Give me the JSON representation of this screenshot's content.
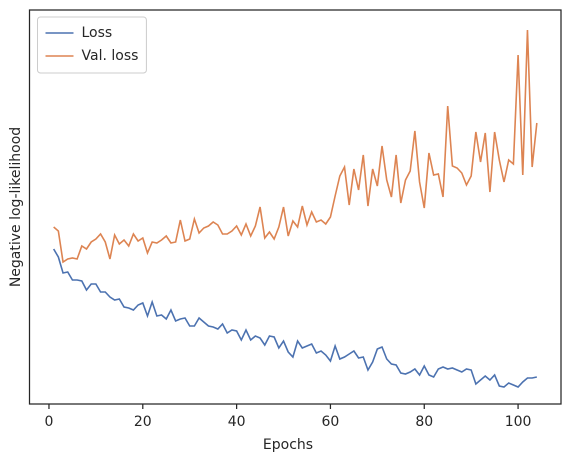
{
  "chart_data": {
    "type": "line",
    "x_label": "Epochs",
    "y_label": "Negative log-likelihood",
    "x": [
      1,
      2,
      3,
      4,
      5,
      6,
      7,
      8,
      9,
      10,
      11,
      12,
      13,
      14,
      15,
      16,
      17,
      18,
      19,
      20,
      21,
      22,
      23,
      24,
      25,
      26,
      27,
      28,
      29,
      30,
      31,
      32,
      33,
      34,
      35,
      36,
      37,
      38,
      39,
      40,
      41,
      42,
      43,
      44,
      45,
      46,
      47,
      48,
      49,
      50,
      51,
      52,
      53,
      54,
      55,
      56,
      57,
      58,
      59,
      60,
      61,
      62,
      63,
      64,
      65,
      66,
      67,
      68,
      69,
      70,
      71,
      72,
      73,
      74,
      75,
      76,
      77,
      78,
      79,
      80,
      81,
      82,
      83,
      84,
      85,
      86,
      87,
      88,
      89,
      90,
      91,
      92,
      93,
      94,
      95,
      96,
      97,
      98,
      99,
      100,
      101,
      102,
      103,
      104
    ],
    "series": [
      {
        "name": "Loss",
        "color": "#4c72b0",
        "values": [
          155,
          147,
          131,
          132,
          124,
          124,
          123,
          114,
          120,
          120,
          112,
          112,
          107,
          104,
          105,
          97,
          96,
          94,
          99,
          101,
          88,
          102,
          88,
          89,
          85,
          94,
          83,
          85,
          86,
          78,
          78,
          86,
          82,
          78,
          77,
          75,
          80,
          71,
          74,
          73,
          64,
          74,
          64,
          68,
          66,
          59,
          68,
          67,
          56,
          63,
          52,
          47,
          63,
          56,
          58,
          60,
          51,
          53,
          49,
          43,
          58,
          45,
          47,
          50,
          53,
          46,
          47,
          34,
          42,
          55,
          57,
          45,
          40,
          39,
          31,
          30,
          32,
          35,
          29,
          38,
          29,
          27,
          35,
          37,
          35,
          36,
          34,
          32,
          35,
          34,
          20,
          24,
          28,
          24,
          29,
          18,
          17,
          21,
          19,
          17,
          22,
          26,
          26,
          27
        ]
      },
      {
        "name": "Val. loss",
        "color": "#dd8452",
        "values": [
          177,
          173,
          142,
          145,
          146,
          145,
          158,
          155,
          162,
          165,
          170,
          162,
          145,
          169,
          160,
          164,
          158,
          170,
          163,
          166,
          151,
          162,
          161,
          164,
          168,
          161,
          162,
          184,
          163,
          165,
          185,
          171,
          176,
          178,
          182,
          179,
          170,
          170,
          173,
          178,
          169,
          180,
          168,
          178,
          197,
          166,
          172,
          165,
          177,
          197,
          168,
          183,
          177,
          198,
          179,
          192,
          182,
          184,
          180,
          187,
          208,
          228,
          237,
          199,
          235,
          214,
          249,
          198,
          235,
          218,
          258,
          224,
          207,
          249,
          201,
          224,
          233,
          273,
          222,
          196,
          251,
          229,
          230,
          207,
          298,
          238,
          236,
          231,
          219,
          228,
          272,
          242,
          271,
          212,
          272,
          244,
          222,
          244,
          240,
          349,
          229,
          374,
          237,
          281
        ]
      }
    ],
    "xlim": [
      -4.15,
      109.15
    ],
    "xticks": [
      0,
      20,
      40,
      60,
      80,
      100
    ],
    "ylim": [
      0,
      394
    ],
    "legend": "upper-left"
  }
}
